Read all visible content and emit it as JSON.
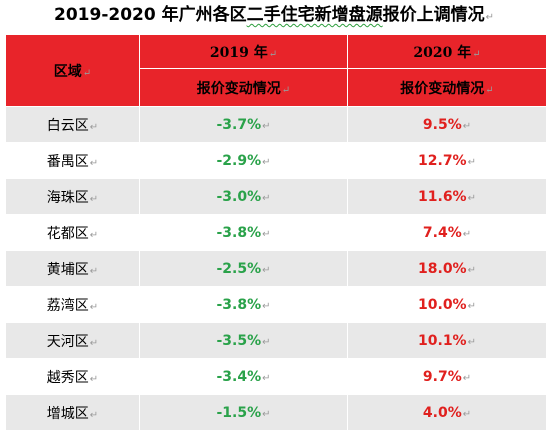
{
  "title": {
    "lead": "2019-2020 年广州各区",
    "underlined": "二手住宅新增盘源",
    "tail": "报价上调情况",
    "mark": "↵"
  },
  "header": {
    "region": "区域",
    "col2019_year": "2019 年",
    "col2019_sub": "报价变动情况",
    "col2020_year": "2020 年",
    "col2020_sub": "报价变动情况",
    "mark": "↵"
  },
  "rows": [
    {
      "district": "白云区",
      "v2019": "-3.7%",
      "v2020": "9.5%"
    },
    {
      "district": "番禺区",
      "v2019": "-2.9%",
      "v2020": "12.7%"
    },
    {
      "district": "海珠区",
      "v2019": "-3.0%",
      "v2020": "11.6%"
    },
    {
      "district": "花都区",
      "v2019": "-3.8%",
      "v2020": "7.4%"
    },
    {
      "district": "黄埔区",
      "v2019": "-2.5%",
      "v2020": "18.0%"
    },
    {
      "district": "荔湾区",
      "v2019": "-3.8%",
      "v2020": "10.0%"
    },
    {
      "district": "天河区",
      "v2019": "-3.5%",
      "v2020": "10.1%"
    },
    {
      "district": "越秀区",
      "v2019": "-3.4%",
      "v2020": "9.7%"
    },
    {
      "district": "增城区",
      "v2019": "-1.5%",
      "v2020": "4.0%"
    }
  ],
  "colors": {
    "header_bg": "#e8242a",
    "row_shade": "#e8e8e8",
    "negative_text": "#2aa24a",
    "positive_text": "#e0201e"
  }
}
